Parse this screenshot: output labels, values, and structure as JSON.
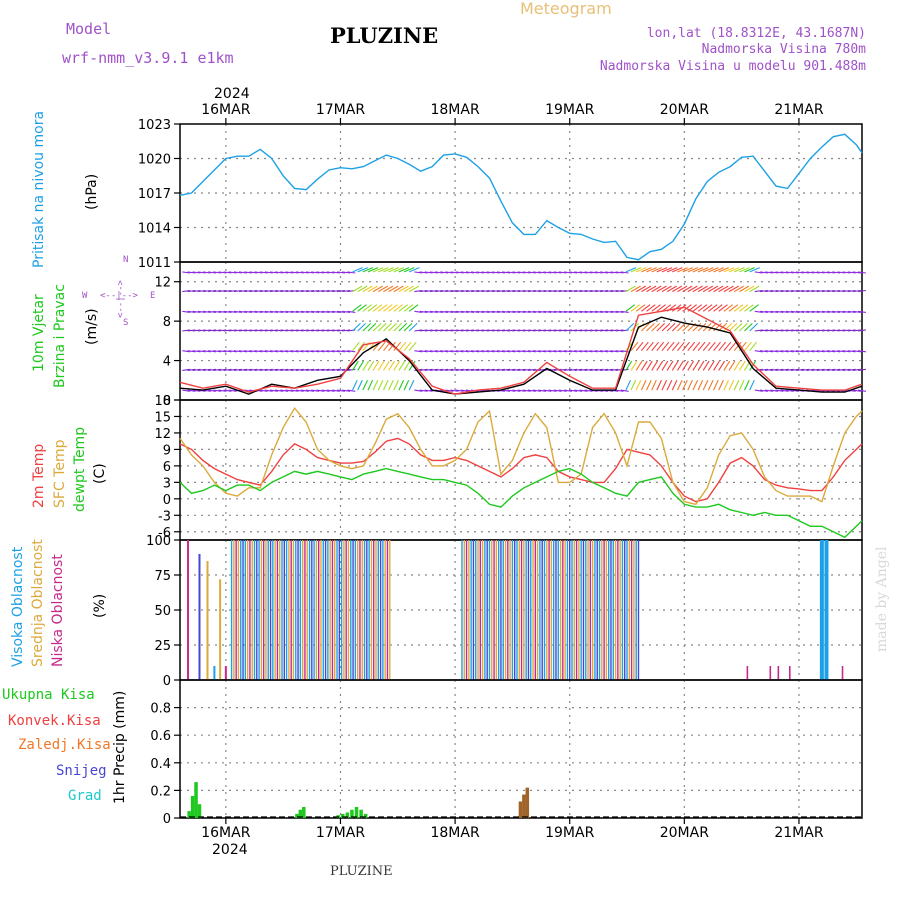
{
  "header": {
    "model_label": "Model",
    "model_name": "wrf-nmm_v3.9.1 e1km",
    "meteogram_label": "Meteogram",
    "title": "PLUZINE",
    "lonlat": "lon,lat (18.8312E, 43.1687N)",
    "elevation": "Nadmorska Visina 780m",
    "model_elevation": "Nadmorska Visina u modelu 901.488m",
    "year": "2024",
    "footer": "PLUZINE",
    "credit": "made by Angel"
  },
  "colors": {
    "pressure": "#1ea0e6",
    "wind_label": "#1ec81e",
    "t2m": "#f04040",
    "sfc": "#dcaa3c",
    "dew": "#1ec81e",
    "high_cloud": "#1ea0e6",
    "mid_cloud": "#dcaa3c",
    "low_cloud": "#c8288c",
    "total_precip": "#1ec81e",
    "conv_precip": "#f04040",
    "frz_precip": "#f07828",
    "snow": "#4646d2",
    "hail": "#1ec8c8",
    "dir_label": "#a052c8"
  },
  "chart_data": [
    {
      "type": "line",
      "id": "pressure",
      "ylabel": "Pritisak na nivou mora",
      "unit": "(hPa)",
      "ylim": [
        1011,
        1023
      ],
      "yticks": [
        1011,
        1014,
        1017,
        1020,
        1023
      ],
      "x_tick_labels": [
        "16MAR",
        "17MAR",
        "18MAR",
        "19MAR",
        "20MAR",
        "21MAR"
      ],
      "x_days": [
        1,
        2,
        3,
        4,
        5,
        6
      ],
      "x_range": [
        0.6,
        6.55
      ],
      "grid": true,
      "series": [
        {
          "color": "pressure",
          "x": [
            0.6,
            0.7,
            0.8,
            0.9,
            1.0,
            1.1,
            1.2,
            1.3,
            1.4,
            1.5,
            1.6,
            1.7,
            1.8,
            1.9,
            2.0,
            2.1,
            2.2,
            2.3,
            2.4,
            2.5,
            2.6,
            2.7,
            2.8,
            2.9,
            3.0,
            3.1,
            3.2,
            3.3,
            3.4,
            3.5,
            3.6,
            3.7,
            3.8,
            3.9,
            4.0,
            4.1,
            4.2,
            4.3,
            4.4,
            4.5,
            4.6,
            4.7,
            4.8,
            4.9,
            5.0,
            5.1,
            5.2,
            5.3,
            5.4,
            5.5,
            5.6,
            5.7,
            5.8,
            5.9,
            6.0,
            6.1,
            6.2,
            6.3,
            6.4,
            6.5,
            6.55
          ],
          "y": [
            1016.8,
            1017.0,
            1018.0,
            1019.0,
            1020.0,
            1020.2,
            1020.2,
            1020.8,
            1020.0,
            1018.5,
            1017.4,
            1017.3,
            1018.2,
            1019.0,
            1019.2,
            1019.1,
            1019.3,
            1019.8,
            1020.3,
            1020.0,
            1019.5,
            1018.9,
            1019.3,
            1020.3,
            1020.4,
            1020.1,
            1019.3,
            1018.3,
            1016.3,
            1014.4,
            1013.4,
            1013.4,
            1014.6,
            1014.0,
            1013.5,
            1013.4,
            1013.0,
            1012.7,
            1012.8,
            1011.4,
            1011.2,
            1011.9,
            1012.1,
            1012.8,
            1014.3,
            1016.5,
            1018.0,
            1018.8,
            1019.3,
            1020.1,
            1020.2,
            1018.9,
            1017.6,
            1017.4,
            1018.7,
            1020.0,
            1021.0,
            1021.9,
            1022.1,
            1021.2,
            1020.5
          ]
        }
      ]
    },
    {
      "type": "line",
      "id": "wind",
      "ylabel": "10m Vjetar",
      "ylabel2": "Brzina i Pravac",
      "unit": "(m/s)",
      "compass": [
        "N",
        "<--|-->",
        "S",
        "W",
        "<--|-->",
        "E"
      ],
      "ylim": [
        0,
        14
      ],
      "yticks": [
        0,
        4,
        8,
        12
      ],
      "grid": true,
      "series": [
        {
          "name": "speed",
          "color": "#000000",
          "x": [
            0.6,
            0.8,
            1.0,
            1.2,
            1.4,
            1.6,
            1.8,
            2.0,
            2.2,
            2.4,
            2.6,
            2.8,
            3.0,
            3.2,
            3.4,
            3.6,
            3.8,
            4.0,
            4.2,
            4.4,
            4.6,
            4.8,
            5.0,
            5.2,
            5.4,
            5.6,
            5.8,
            6.0,
            6.2,
            6.4,
            6.55
          ],
          "y": [
            1.2,
            1.0,
            1.4,
            0.6,
            1.6,
            1.2,
            2.0,
            2.4,
            4.8,
            6.2,
            4.0,
            1.0,
            0.6,
            0.8,
            1.0,
            1.6,
            3.2,
            2.0,
            1.0,
            1.0,
            7.4,
            8.4,
            7.8,
            7.4,
            6.8,
            3.2,
            1.2,
            1.0,
            0.8,
            0.8,
            1.4
          ]
        },
        {
          "name": "gust",
          "color": "#f04040",
          "x": [
            0.6,
            0.8,
            1.0,
            1.2,
            1.4,
            1.6,
            1.8,
            2.0,
            2.2,
            2.4,
            2.6,
            2.8,
            3.0,
            3.2,
            3.4,
            3.6,
            3.8,
            4.0,
            4.2,
            4.4,
            4.6,
            4.8,
            5.0,
            5.2,
            5.4,
            5.6,
            5.8,
            6.0,
            6.2,
            6.4,
            6.55
          ],
          "y": [
            1.8,
            1.2,
            1.6,
            0.8,
            1.4,
            1.2,
            1.6,
            2.2,
            5.6,
            6.0,
            4.2,
            1.4,
            0.6,
            1.0,
            1.2,
            1.8,
            3.8,
            2.4,
            1.2,
            1.2,
            8.6,
            9.0,
            9.4,
            8.2,
            7.0,
            3.6,
            1.4,
            1.2,
            1.0,
            1.0,
            1.6
          ]
        }
      ]
    },
    {
      "type": "line",
      "id": "temperature",
      "ylabel": "2m Temp",
      "ylabel2": "SFC Temp",
      "ylabel3": "dewpt Temp",
      "unit": "(C)",
      "ylim": [
        -7.5,
        18
      ],
      "yticks": [
        -6,
        -3,
        0,
        3,
        6,
        9,
        12,
        15,
        18
      ],
      "grid": true,
      "series": [
        {
          "name": "2m",
          "color": "t2m",
          "x": [
            0.6,
            0.7,
            0.8,
            0.9,
            1.0,
            1.1,
            1.2,
            1.3,
            1.4,
            1.5,
            1.6,
            1.7,
            1.8,
            1.9,
            2.0,
            2.1,
            2.2,
            2.3,
            2.4,
            2.5,
            2.6,
            2.7,
            2.8,
            2.9,
            3.0,
            3.1,
            3.2,
            3.3,
            3.4,
            3.5,
            3.6,
            3.7,
            3.8,
            3.9,
            4.0,
            4.1,
            4.2,
            4.3,
            4.4,
            4.5,
            4.6,
            4.7,
            4.8,
            4.9,
            5.0,
            5.1,
            5.2,
            5.3,
            5.4,
            5.5,
            5.6,
            5.7,
            5.8,
            5.9,
            6.0,
            6.1,
            6.2,
            6.3,
            6.4,
            6.5,
            6.55
          ],
          "y": [
            10.0,
            9.0,
            7.0,
            5.5,
            4.5,
            3.5,
            3.0,
            2.5,
            5.0,
            8.0,
            10.0,
            9.0,
            7.5,
            7.0,
            6.5,
            6.5,
            6.8,
            8.5,
            10.5,
            11.0,
            10.0,
            8.0,
            7.0,
            7.0,
            7.5,
            7.0,
            6.0,
            5.0,
            4.0,
            5.5,
            7.5,
            8.0,
            7.5,
            5.0,
            4.0,
            3.5,
            3.0,
            3.0,
            5.5,
            9.0,
            8.5,
            8.0,
            6.0,
            3.0,
            0.5,
            -0.5,
            0.0,
            3.0,
            6.5,
            7.5,
            6.0,
            3.5,
            2.5,
            2.0,
            1.8,
            1.5,
            1.5,
            4.0,
            7.0,
            9.0,
            10.0
          ]
        },
        {
          "name": "sfc",
          "color": "sfc",
          "x": [
            0.6,
            0.7,
            0.8,
            0.9,
            1.0,
            1.1,
            1.2,
            1.3,
            1.4,
            1.5,
            1.6,
            1.7,
            1.8,
            1.9,
            2.0,
            2.1,
            2.2,
            2.3,
            2.4,
            2.5,
            2.6,
            2.7,
            2.8,
            2.9,
            3.0,
            3.1,
            3.2,
            3.3,
            3.4,
            3.5,
            3.6,
            3.7,
            3.8,
            3.9,
            4.0,
            4.1,
            4.2,
            4.3,
            4.4,
            4.5,
            4.6,
            4.7,
            4.8,
            4.9,
            5.0,
            5.1,
            5.2,
            5.3,
            5.4,
            5.5,
            5.6,
            5.7,
            5.8,
            5.9,
            6.0,
            6.1,
            6.2,
            6.3,
            6.4,
            6.5,
            6.55
          ],
          "y": [
            11.0,
            8.0,
            6.0,
            3.0,
            1.0,
            0.5,
            2.0,
            2.0,
            8.0,
            13.0,
            16.5,
            14.0,
            9.0,
            7.0,
            6.0,
            5.5,
            6.0,
            10.0,
            14.5,
            15.5,
            13.0,
            9.0,
            6.0,
            6.0,
            7.0,
            9.0,
            14.0,
            16.0,
            4.5,
            7.0,
            12.0,
            15.5,
            13.0,
            3.0,
            3.0,
            4.5,
            13.0,
            15.5,
            12.0,
            6.0,
            14.0,
            14.0,
            11.0,
            3.0,
            -0.5,
            -1.0,
            2.0,
            8.0,
            11.5,
            12.0,
            9.0,
            4.0,
            1.5,
            0.5,
            0.5,
            0.5,
            -0.5,
            6.0,
            12.0,
            15.0,
            16.0
          ]
        },
        {
          "name": "dew",
          "color": "dew",
          "x": [
            0.6,
            0.7,
            0.8,
            0.9,
            1.0,
            1.1,
            1.2,
            1.3,
            1.4,
            1.5,
            1.6,
            1.7,
            1.8,
            1.9,
            2.0,
            2.1,
            2.2,
            2.3,
            2.4,
            2.5,
            2.6,
            2.7,
            2.8,
            2.9,
            3.0,
            3.1,
            3.2,
            3.3,
            3.4,
            3.5,
            3.6,
            3.7,
            3.8,
            3.9,
            4.0,
            4.1,
            4.2,
            4.3,
            4.4,
            4.5,
            4.6,
            4.7,
            4.8,
            4.9,
            5.0,
            5.1,
            5.2,
            5.3,
            5.4,
            5.5,
            5.6,
            5.7,
            5.8,
            5.9,
            6.0,
            6.1,
            6.2,
            6.3,
            6.4,
            6.5,
            6.55
          ],
          "y": [
            3.0,
            1.0,
            1.5,
            2.5,
            1.5,
            2.5,
            2.5,
            1.5,
            3.0,
            4.0,
            5.0,
            4.5,
            5.0,
            4.5,
            4.0,
            3.5,
            4.5,
            5.0,
            5.5,
            5.0,
            4.5,
            4.0,
            3.5,
            3.5,
            3.0,
            2.5,
            1.0,
            -1.0,
            -1.5,
            0.5,
            2.0,
            3.0,
            4.0,
            5.0,
            5.5,
            4.5,
            3.0,
            2.0,
            1.0,
            0.5,
            3.0,
            3.5,
            4.0,
            1.0,
            -1.0,
            -1.5,
            -1.5,
            -1.0,
            -2.0,
            -2.5,
            -3.0,
            -2.5,
            -3.0,
            -3.0,
            -4.0,
            -5.0,
            -5.0,
            -6.0,
            -7.0,
            -5.0,
            -4.0
          ]
        }
      ]
    },
    {
      "type": "bar",
      "id": "cloud",
      "ylabel": "Visoka Oblacnost",
      "ylabel2": "Srednja Oblacnost",
      "ylabel3": "Niska Oblacnost",
      "unit": "(%)",
      "ylim": [
        0,
        100
      ],
      "yticks": [
        0,
        25,
        50,
        75,
        100
      ],
      "grid": true,
      "bars": [
        {
          "x": 0.67,
          "v": 100,
          "c": "low_cloud"
        },
        {
          "x": 0.77,
          "v": 90,
          "c": "snow"
        },
        {
          "x": 0.84,
          "v": 85,
          "c": "mid_cloud"
        },
        {
          "x": 0.9,
          "v": 10,
          "c": "high_cloud"
        },
        {
          "x": 0.95,
          "v": 72,
          "c": "mid_cloud"
        },
        {
          "x": 1.0,
          "v": 10,
          "c": "low_cloud"
        }
      ],
      "blocks": [
        {
          "x0": 1.05,
          "x1": 2.45,
          "v": 100
        },
        {
          "x0": 3.06,
          "x1": 4.6,
          "v": 100
        }
      ],
      "tail_bars": [
        {
          "x": 5.55,
          "v": 10,
          "c": "low_cloud"
        },
        {
          "x": 5.75,
          "v": 10,
          "c": "low_cloud"
        },
        {
          "x": 5.82,
          "v": 10,
          "c": "low_cloud"
        },
        {
          "x": 5.92,
          "v": 10,
          "c": "low_cloud"
        },
        {
          "x": 6.2,
          "v": 100,
          "c": "high_cloud",
          "w": 4
        },
        {
          "x": 6.24,
          "v": 100,
          "c": "high_cloud",
          "w": 4
        },
        {
          "x": 6.38,
          "v": 10,
          "c": "low_cloud"
        }
      ]
    },
    {
      "type": "bar",
      "id": "precip",
      "legend": [
        "Ukupna Kisa",
        "Konvek.Kisa",
        "Zaledj.Kisa",
        "Snijeg",
        "Grad"
      ],
      "legend_colors": [
        "total_precip",
        "conv_precip",
        "frz_precip",
        "snow",
        "hail"
      ],
      "unit": "1hr Precip (mm)",
      "ylim": [
        0,
        1.0
      ],
      "yticks": [
        0,
        0.2,
        0.4,
        0.6,
        0.8
      ],
      "x_tick_labels": [
        "16MAR",
        "17MAR",
        "18MAR",
        "19MAR",
        "20MAR",
        "21MAR"
      ],
      "grid": true,
      "bars": [
        {
          "x": 0.68,
          "v": 0.05,
          "c": "total_precip"
        },
        {
          "x": 0.71,
          "v": 0.16,
          "c": "total_precip"
        },
        {
          "x": 0.74,
          "v": 0.26,
          "c": "total_precip"
        },
        {
          "x": 0.77,
          "v": 0.1,
          "c": "total_precip"
        },
        {
          "x": 1.62,
          "v": 0.03,
          "c": "total_precip"
        },
        {
          "x": 1.65,
          "v": 0.06,
          "c": "total_precip"
        },
        {
          "x": 1.68,
          "v": 0.08,
          "c": "total_precip"
        },
        {
          "x": 1.98,
          "v": 0.02,
          "c": "total_precip"
        },
        {
          "x": 2.02,
          "v": 0.03,
          "c": "total_precip"
        },
        {
          "x": 2.06,
          "v": 0.04,
          "c": "total_precip"
        },
        {
          "x": 2.1,
          "v": 0.06,
          "c": "total_precip"
        },
        {
          "x": 2.14,
          "v": 0.08,
          "c": "total_precip"
        },
        {
          "x": 2.18,
          "v": 0.06,
          "c": "total_precip"
        },
        {
          "x": 2.22,
          "v": 0.03,
          "c": "total_precip"
        },
        {
          "x": 3.57,
          "v": 0.12,
          "c": "#a0642a"
        },
        {
          "x": 3.6,
          "v": 0.17,
          "c": "#a0642a"
        },
        {
          "x": 3.63,
          "v": 0.22,
          "c": "#a0642a"
        }
      ]
    }
  ]
}
